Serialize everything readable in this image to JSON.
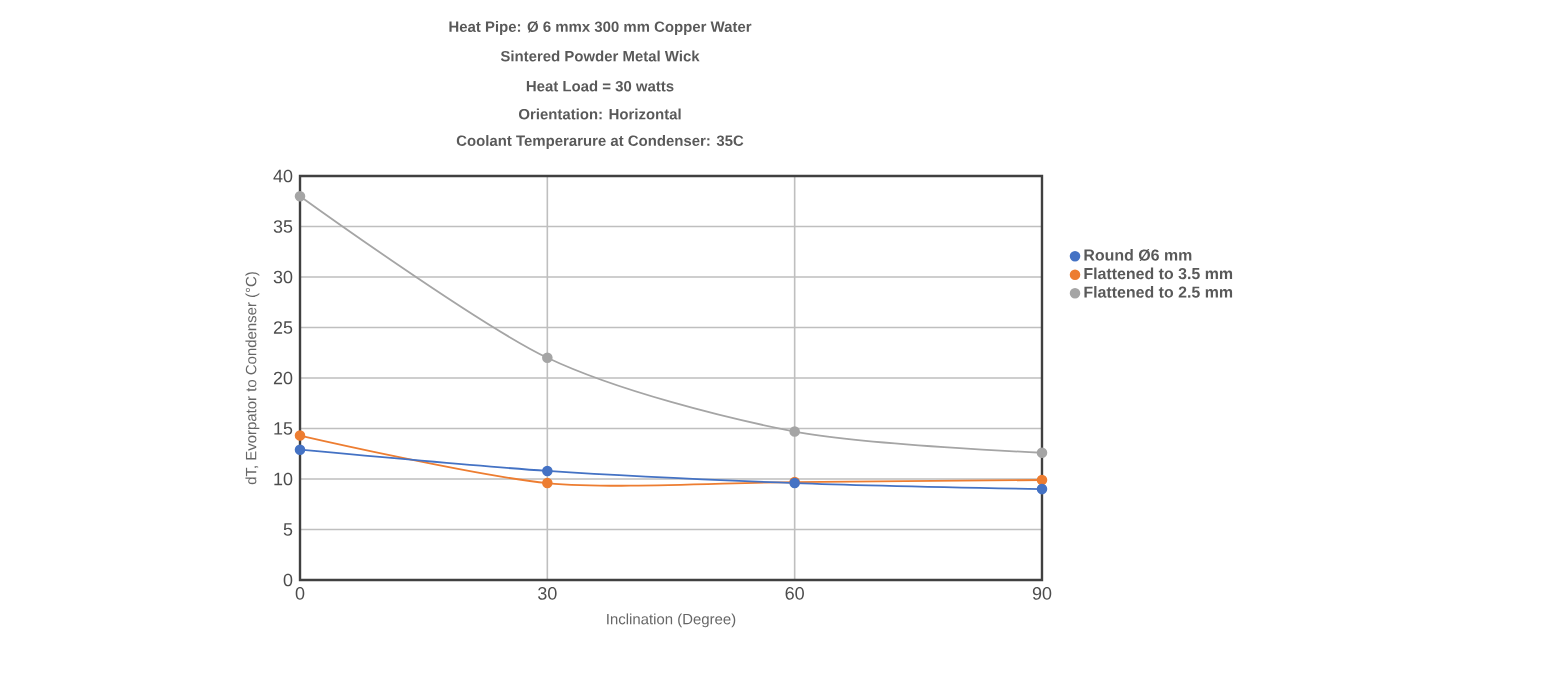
{
  "chart_data": {
    "type": "line",
    "title": "Heat Pipe: Ø 6 mmx 300 mm Copper Water",
    "subtitle": "Sintered Powder Metal Wick",
    "annotations": [
      "Heat Load = 30 watts",
      "Orientation: Horizontal",
      "Coolant Temperarure at Condenser: 35C"
    ],
    "xlabel": "Inclination (Degree)",
    "ylabel": "dT, Evorpator to Condenser (°C)",
    "x": [
      0,
      30,
      60,
      90
    ],
    "xlim": [
      0,
      90
    ],
    "xticks": [
      0,
      30,
      60,
      90
    ],
    "ylim": [
      0,
      40
    ],
    "yticks": [
      0,
      5,
      10,
      15,
      20,
      25,
      30,
      35,
      40
    ],
    "grid": true,
    "legend": "right",
    "marker": "circle",
    "series": [
      {
        "name": "Round Ø6 mm",
        "color": "#4472c4",
        "values": [
          12.9,
          10.8,
          9.6,
          9.0
        ]
      },
      {
        "name": "Flattened to 3.5 mm",
        "color": "#ed7d31",
        "values": [
          14.3,
          9.6,
          9.7,
          9.9
        ]
      },
      {
        "name": "Flattened to 2.5 mm",
        "color": "#a5a5a5",
        "values": [
          38,
          22,
          14.7,
          12.6
        ]
      }
    ]
  }
}
